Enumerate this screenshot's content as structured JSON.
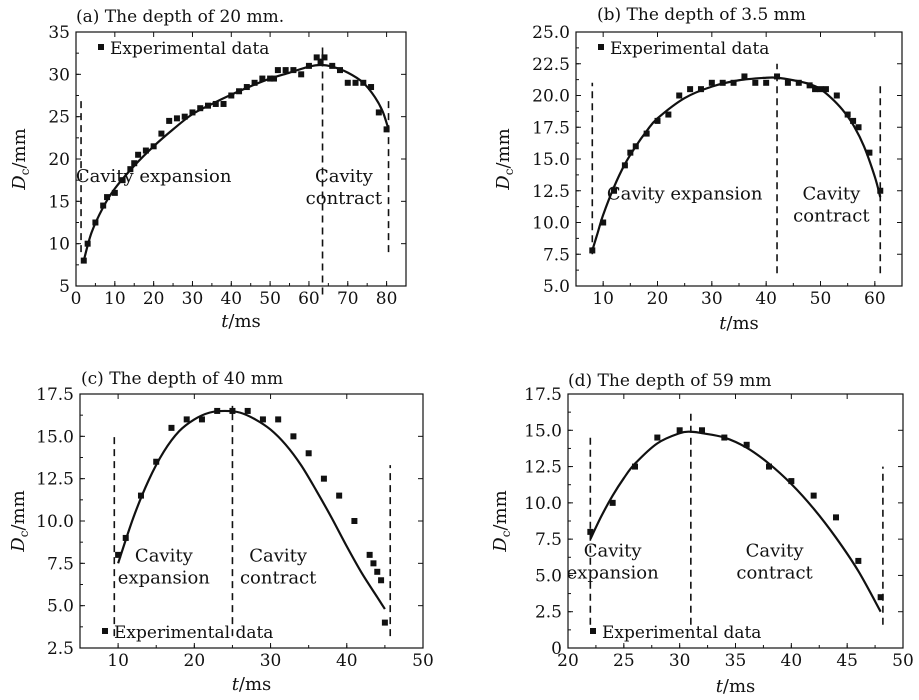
{
  "chart_data": [
    {
      "type": "scatter",
      "panel_title": "(a) The depth of 20 mm.",
      "xlabel": "t/ms",
      "ylabel": "Dc/mm",
      "xlim": [
        0,
        85
      ],
      "ylim": [
        5,
        35
      ],
      "xticks": [
        "0",
        "10",
        "20",
        "30",
        "40",
        "50",
        "60",
        "70",
        "80"
      ],
      "yticks": [
        "5",
        "10",
        "15",
        "20",
        "25",
        "30",
        "35"
      ],
      "legend": {
        "label": "Experimental data",
        "position": "top-left"
      },
      "region_labels": [
        {
          "lines": [
            "Cavity expansion"
          ],
          "x": 20,
          "y": 17.3
        },
        {
          "lines": [
            "Cavity",
            "contract"
          ],
          "x": 69,
          "y": 17.3
        }
      ],
      "dividers": [
        {
          "x": 1.3,
          "y0": 9,
          "y1": 27
        },
        {
          "x": 63.5,
          "y0": 4,
          "y1": 33.5
        },
        {
          "x": 80.5,
          "y0": 9,
          "y1": 27
        }
      ],
      "series": [
        {
          "kind": "points",
          "x": [
            2,
            3,
            5,
            7,
            8,
            10,
            12,
            14,
            15,
            16,
            18,
            20,
            22,
            24,
            26,
            28,
            30,
            32,
            34,
            36,
            38,
            40,
            42,
            44,
            46,
            48,
            50,
            51,
            52,
            54,
            56,
            58,
            60,
            62,
            63,
            64,
            66,
            68,
            70,
            72,
            74,
            76,
            78,
            80
          ],
          "y": [
            8,
            10,
            12.5,
            14.5,
            15.5,
            16,
            17.5,
            18.8,
            19.5,
            20.5,
            21,
            21.5,
            23,
            24.5,
            24.8,
            25,
            25.5,
            26,
            26.3,
            26.5,
            26.5,
            27.5,
            28,
            28.5,
            29,
            29.5,
            29.5,
            29.5,
            30.5,
            30.5,
            30.5,
            30,
            31,
            32,
            31.5,
            32,
            31,
            30.5,
            29,
            29,
            29,
            28.5,
            25.5,
            23.5
          ]
        },
        {
          "kind": "fit",
          "x": [
            2,
            4,
            7,
            10,
            15,
            20,
            25,
            30,
            35,
            40,
            45,
            50,
            55,
            60,
            63,
            66,
            70,
            74,
            77,
            79,
            80.5
          ],
          "y": [
            8,
            11.3,
            14.3,
            16.5,
            19.2,
            21.5,
            23.5,
            25.3,
            26.5,
            27.6,
            28.6,
            29.5,
            30.2,
            30.9,
            31.1,
            30.9,
            30.2,
            29,
            27.3,
            25.6,
            23.5
          ]
        }
      ]
    },
    {
      "type": "scatter",
      "panel_title": "(b) The depth of 3.5 mm",
      "xlabel": "t/ms",
      "ylabel": "Dc/mm",
      "xlim": [
        5,
        65
      ],
      "ylim": [
        5.0,
        25.0
      ],
      "xticks": [
        "10",
        "20",
        "30",
        "40",
        "50",
        "60"
      ],
      "yticks": [
        "5.0",
        "7.5",
        "10.0",
        "12.5",
        "15.0",
        "17.5",
        "20.0",
        "22.5",
        "25.0"
      ],
      "legend": {
        "label": "Experimental data",
        "position": "top-left"
      },
      "region_labels": [
        {
          "lines": [
            "Cavity expansion"
          ],
          "x": 25,
          "y": 11.8
        },
        {
          "lines": [
            "Cavity",
            "contract"
          ],
          "x": 52,
          "y": 11.8
        }
      ],
      "dividers": [
        {
          "x": 8,
          "y0": 7.5,
          "y1": 21
        },
        {
          "x": 42,
          "y0": 6,
          "y1": 22.5
        },
        {
          "x": 61,
          "y0": 6,
          "y1": 21
        }
      ],
      "series": [
        {
          "kind": "points",
          "x": [
            8,
            10,
            12,
            14,
            15,
            16,
            18,
            20,
            22,
            24,
            26,
            28,
            30,
            32,
            34,
            36,
            38,
            40,
            42,
            44,
            46,
            48,
            49,
            50,
            51,
            53,
            55,
            56,
            57,
            59,
            61
          ],
          "y": [
            7.8,
            10,
            12.5,
            14.5,
            15.5,
            16,
            17,
            18,
            18.5,
            20,
            20.5,
            20.5,
            21,
            21,
            21,
            21.5,
            21,
            21,
            21.5,
            21,
            21,
            20.8,
            20.5,
            20.5,
            20.5,
            20,
            18.5,
            18,
            17.5,
            15.5,
            12.5
          ]
        },
        {
          "kind": "fit",
          "x": [
            8,
            9,
            10,
            12,
            14,
            16,
            18,
            20,
            25,
            30,
            35,
            40,
            42,
            45,
            48,
            50,
            52,
            54,
            56,
            58,
            60,
            61
          ],
          "y": [
            7.8,
            9.2,
            10.6,
            12.8,
            14.6,
            16,
            17.2,
            18.2,
            19.8,
            20.7,
            21.2,
            21.4,
            21.4,
            21.2,
            20.9,
            20.5,
            19.8,
            18.9,
            17.7,
            16,
            13.6,
            12
          ]
        }
      ]
    },
    {
      "type": "scatter",
      "panel_title": "(c) The depth of 40 mm",
      "xlabel": "t/ms",
      "ylabel": "Dc/mm",
      "xlim": [
        5,
        50
      ],
      "ylim": [
        2.5,
        17.5
      ],
      "xticks": [
        "10",
        "20",
        "30",
        "40",
        "50"
      ],
      "yticks": [
        "2.5",
        "5.0",
        "7.5",
        "10.0",
        "12.5",
        "15.0",
        "17.5"
      ],
      "legend": {
        "label": "Experimental data",
        "position": "bottom-left"
      },
      "region_labels": [
        {
          "lines": [
            "Cavity",
            "expansion"
          ],
          "x": 16,
          "y": 7.6
        },
        {
          "lines": [
            "Cavity",
            "contract"
          ],
          "x": 31,
          "y": 7.6
        }
      ],
      "dividers": [
        {
          "x": 9.5,
          "y0": 3.2,
          "y1": 15.2
        },
        {
          "x": 25,
          "y0": 3.2,
          "y1": 16.8
        },
        {
          "x": 45.7,
          "y0": 3.2,
          "y1": 13.3
        }
      ],
      "series": [
        {
          "kind": "points",
          "x": [
            10,
            11,
            13,
            15,
            17,
            19,
            21,
            23,
            25,
            27,
            29,
            31,
            33,
            35,
            37,
            39,
            41,
            43,
            43.5,
            44,
            44.5,
            45
          ],
          "y": [
            8,
            9,
            11.5,
            13.5,
            15.5,
            16,
            16,
            16.5,
            16.5,
            16.5,
            16,
            16,
            15,
            14,
            12.5,
            11.5,
            10,
            8,
            7.5,
            7,
            6.5,
            4
          ]
        },
        {
          "kind": "fit",
          "x": [
            10,
            12,
            14,
            16,
            18,
            20,
            22,
            24,
            26,
            28,
            30,
            32,
            34,
            36,
            38,
            40,
            42,
            44,
            45
          ],
          "y": [
            7.5,
            10.2,
            12.4,
            14.1,
            15.3,
            16,
            16.4,
            16.5,
            16.4,
            16,
            15.4,
            14.5,
            13.3,
            11.8,
            10.2,
            8.5,
            6.9,
            5.5,
            4.8
          ]
        }
      ]
    },
    {
      "type": "scatter",
      "panel_title": "(d) The depth of 59 mm",
      "xlabel": "t/ms",
      "ylabel": "Dc/mm",
      "xlim": [
        20,
        50
      ],
      "ylim": [
        0,
        17.5
      ],
      "xticks": [
        "20",
        "25",
        "30",
        "35",
        "40",
        "45",
        "50"
      ],
      "yticks": [
        "0",
        "2.5",
        "5.0",
        "7.5",
        "10.0",
        "12.5",
        "15.0",
        "17.5"
      ],
      "legend": {
        "label": "Experimental data",
        "position": "bottom-left"
      },
      "region_labels": [
        {
          "lines": [
            "Cavity",
            "expansion"
          ],
          "x": 24,
          "y": 6.3
        },
        {
          "lines": [
            "Cavity",
            "contract"
          ],
          "x": 38.5,
          "y": 6.3
        }
      ],
      "dividers": [
        {
          "x": 22,
          "y0": 1.6,
          "y1": 14.6
        },
        {
          "x": 31,
          "y0": 1.6,
          "y1": 16.4
        },
        {
          "x": 48.2,
          "y0": 1.6,
          "y1": 12.5
        }
      ],
      "series": [
        {
          "kind": "points",
          "x": [
            22,
            24,
            26,
            28,
            30,
            32,
            34,
            36,
            38,
            40,
            42,
            44,
            46,
            48
          ],
          "y": [
            8,
            10,
            12.5,
            14.5,
            15,
            15,
            14.5,
            14,
            12.5,
            11.5,
            10.5,
            9,
            6,
            3.5
          ]
        },
        {
          "kind": "fit",
          "x": [
            22,
            23,
            24,
            25,
            26,
            28,
            30,
            31,
            32,
            34,
            36,
            38,
            40,
            42,
            44,
            46,
            48
          ],
          "y": [
            7.5,
            9.1,
            10.5,
            11.7,
            12.7,
            14.1,
            14.8,
            14.9,
            14.8,
            14.5,
            13.8,
            12.7,
            11.3,
            9.6,
            7.6,
            5.3,
            2.5
          ]
        }
      ]
    }
  ]
}
